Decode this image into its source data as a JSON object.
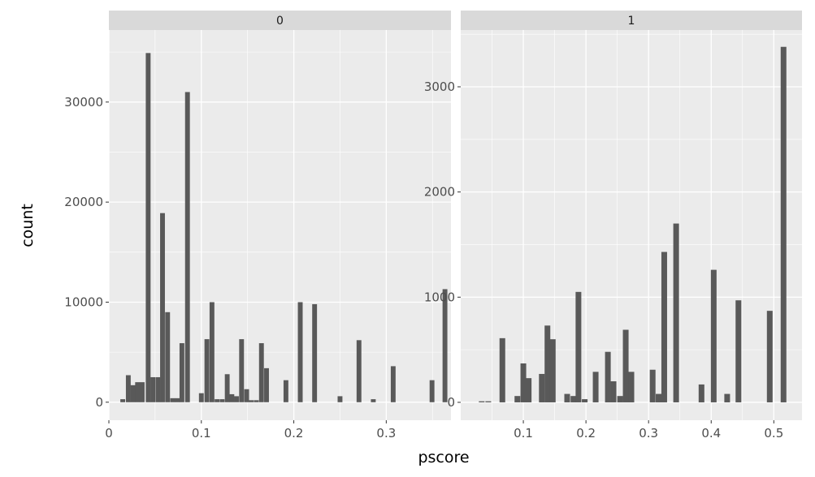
{
  "chart_data": {
    "type": "bar",
    "xlabel": "pscore",
    "ylabel": "count",
    "grid": true,
    "colors": {
      "bar": "#595959",
      "panel": "#ebebeb",
      "strip": "#d9d9d9",
      "grid": "#ffffff"
    },
    "panels": [
      {
        "strip": "0",
        "xlim": [
          0,
          0.37
        ],
        "ylim": [
          -1800,
          37200
        ],
        "x_ticks": [
          0,
          0.1,
          0.2,
          0.3
        ],
        "x_tick_labels": [
          "0",
          "0.1",
          "0.2",
          "0.3"
        ],
        "y_ticks": [
          0,
          10000,
          20000,
          30000
        ],
        "y_tick_labels": [
          "0",
          "10000",
          "20000",
          "30000"
        ],
        "bin_width": 0.0052,
        "bars": [
          {
            "x": 0.015,
            "count": 300
          },
          {
            "x": 0.021,
            "count": 2700
          },
          {
            "x": 0.026,
            "count": 1700
          },
          {
            "x": 0.031,
            "count": 2000
          },
          {
            "x": 0.036,
            "count": 2000
          },
          {
            "x": 0.0425,
            "count": 34900
          },
          {
            "x": 0.0475,
            "count": 2500
          },
          {
            "x": 0.053,
            "count": 2500
          },
          {
            "x": 0.058,
            "count": 18900
          },
          {
            "x": 0.0635,
            "count": 9000
          },
          {
            "x": 0.069,
            "count": 400
          },
          {
            "x": 0.074,
            "count": 400
          },
          {
            "x": 0.079,
            "count": 5900
          },
          {
            "x": 0.085,
            "count": 31000
          },
          {
            "x": 0.1,
            "count": 900
          },
          {
            "x": 0.106,
            "count": 6300
          },
          {
            "x": 0.1115,
            "count": 10000
          },
          {
            "x": 0.117,
            "count": 300
          },
          {
            "x": 0.1225,
            "count": 300
          },
          {
            "x": 0.128,
            "count": 2800
          },
          {
            "x": 0.133,
            "count": 800
          },
          {
            "x": 0.138,
            "count": 600
          },
          {
            "x": 0.1435,
            "count": 6300
          },
          {
            "x": 0.149,
            "count": 1300
          },
          {
            "x": 0.154,
            "count": 200
          },
          {
            "x": 0.1595,
            "count": 200
          },
          {
            "x": 0.165,
            "count": 5900
          },
          {
            "x": 0.1705,
            "count": 3400
          },
          {
            "x": 0.1915,
            "count": 2200
          },
          {
            "x": 0.207,
            "count": 10000
          },
          {
            "x": 0.2225,
            "count": 9800
          },
          {
            "x": 0.25,
            "count": 600
          },
          {
            "x": 0.2705,
            "count": 6200
          },
          {
            "x": 0.286,
            "count": 300
          },
          {
            "x": 0.3075,
            "count": 3600
          },
          {
            "x": 0.3495,
            "count": 2200
          },
          {
            "x": 0.3635,
            "count": 11300
          }
        ]
      },
      {
        "strip": "1",
        "xlim": [
          0.0,
          0.545
        ],
        "ylim": [
          -170,
          3540
        ],
        "x_ticks": [
          0.1,
          0.2,
          0.3,
          0.4,
          0.5
        ],
        "x_tick_labels": [
          "0.1",
          "0.2",
          "0.3",
          "0.4",
          "0.5"
        ],
        "y_ticks": [
          0,
          1000,
          2000,
          3000
        ],
        "y_tick_labels": [
          "0",
          "1000",
          "2000",
          "3000"
        ],
        "bin_width": 0.0091,
        "bars": [
          {
            "x": 0.0335,
            "count": 10
          },
          {
            "x": 0.044,
            "count": 10
          },
          {
            "x": 0.0665,
            "count": 610
          },
          {
            "x": 0.0905,
            "count": 60
          },
          {
            "x": 0.1,
            "count": 370
          },
          {
            "x": 0.1085,
            "count": 230
          },
          {
            "x": 0.1295,
            "count": 270
          },
          {
            "x": 0.1385,
            "count": 730
          },
          {
            "x": 0.147,
            "count": 600
          },
          {
            "x": 0.17,
            "count": 80
          },
          {
            "x": 0.18,
            "count": 60
          },
          {
            "x": 0.188,
            "count": 1050
          },
          {
            "x": 0.198,
            "count": 30
          },
          {
            "x": 0.2155,
            "count": 290
          },
          {
            "x": 0.235,
            "count": 480
          },
          {
            "x": 0.244,
            "count": 200
          },
          {
            "x": 0.2545,
            "count": 60
          },
          {
            "x": 0.2635,
            "count": 690
          },
          {
            "x": 0.2725,
            "count": 290
          },
          {
            "x": 0.3065,
            "count": 310
          },
          {
            "x": 0.316,
            "count": 80
          },
          {
            "x": 0.325,
            "count": 1430
          },
          {
            "x": 0.344,
            "count": 1700
          },
          {
            "x": 0.3845,
            "count": 170
          },
          {
            "x": 0.404,
            "count": 1260
          },
          {
            "x": 0.4255,
            "count": 80
          },
          {
            "x": 0.4435,
            "count": 970
          },
          {
            "x": 0.4935,
            "count": 870
          },
          {
            "x": 0.5155,
            "count": 3380
          }
        ]
      }
    ]
  }
}
